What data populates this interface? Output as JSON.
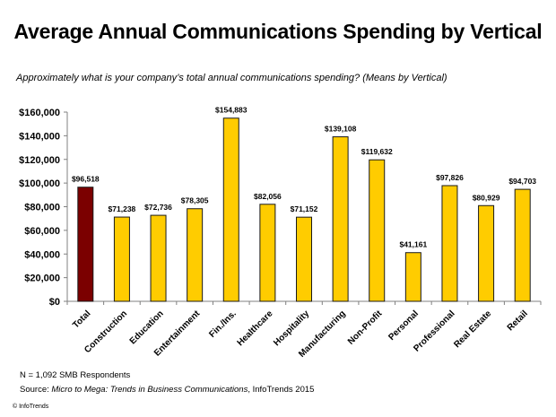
{
  "chart_data": {
    "type": "bar",
    "title": "Average Annual Communications Spending by Vertical",
    "subtitle": "Approximately what is your company’s total annual communications spending? (Means by Vertical)",
    "xlabel": "",
    "ylabel": "",
    "ylim": [
      0,
      160000
    ],
    "yticks": [
      0,
      20000,
      40000,
      60000,
      80000,
      100000,
      120000,
      140000,
      160000
    ],
    "ytick_labels": [
      "$0",
      "$20,000",
      "$40,000",
      "$60,000",
      "$80,000",
      "$100,000",
      "$120,000",
      "$140,000",
      "$160,000"
    ],
    "grid": false,
    "legend": "none",
    "categories": [
      "Total",
      "Construction",
      "Education",
      "Entertainment",
      "Fin./Ins.",
      "Healthcare",
      "Hospitality",
      "Manufacturing",
      "Non-Profit",
      "Personal",
      "Professional",
      "Real Estate",
      "Retail"
    ],
    "values": [
      96518,
      71238,
      72736,
      78305,
      154883,
      82056,
      71152,
      139108,
      119632,
      41161,
      97826,
      80929,
      94703
    ],
    "data_labels": [
      "$96,518",
      "$71,238",
      "$72,736",
      "$78,305",
      "$154,883",
      "$82,056",
      "$71,152",
      "$139,108",
      "$119,632",
      "$41,161",
      "$97,826",
      "$80,929",
      "$94,703"
    ],
    "colors": {
      "highlight": "#7b0000",
      "default": "#ffcc00",
      "outline": "#1a1a1a",
      "axis": "#808080"
    },
    "highlight_index": 0
  },
  "footer": {
    "n_note": "N = 1,092 SMB Respondents",
    "source_prefix": "Source: ",
    "source_title": "Micro to Mega: Trends in Business Communications",
    "source_suffix": ", InfoTrends 2015",
    "copyright": "© InfoTrends"
  }
}
